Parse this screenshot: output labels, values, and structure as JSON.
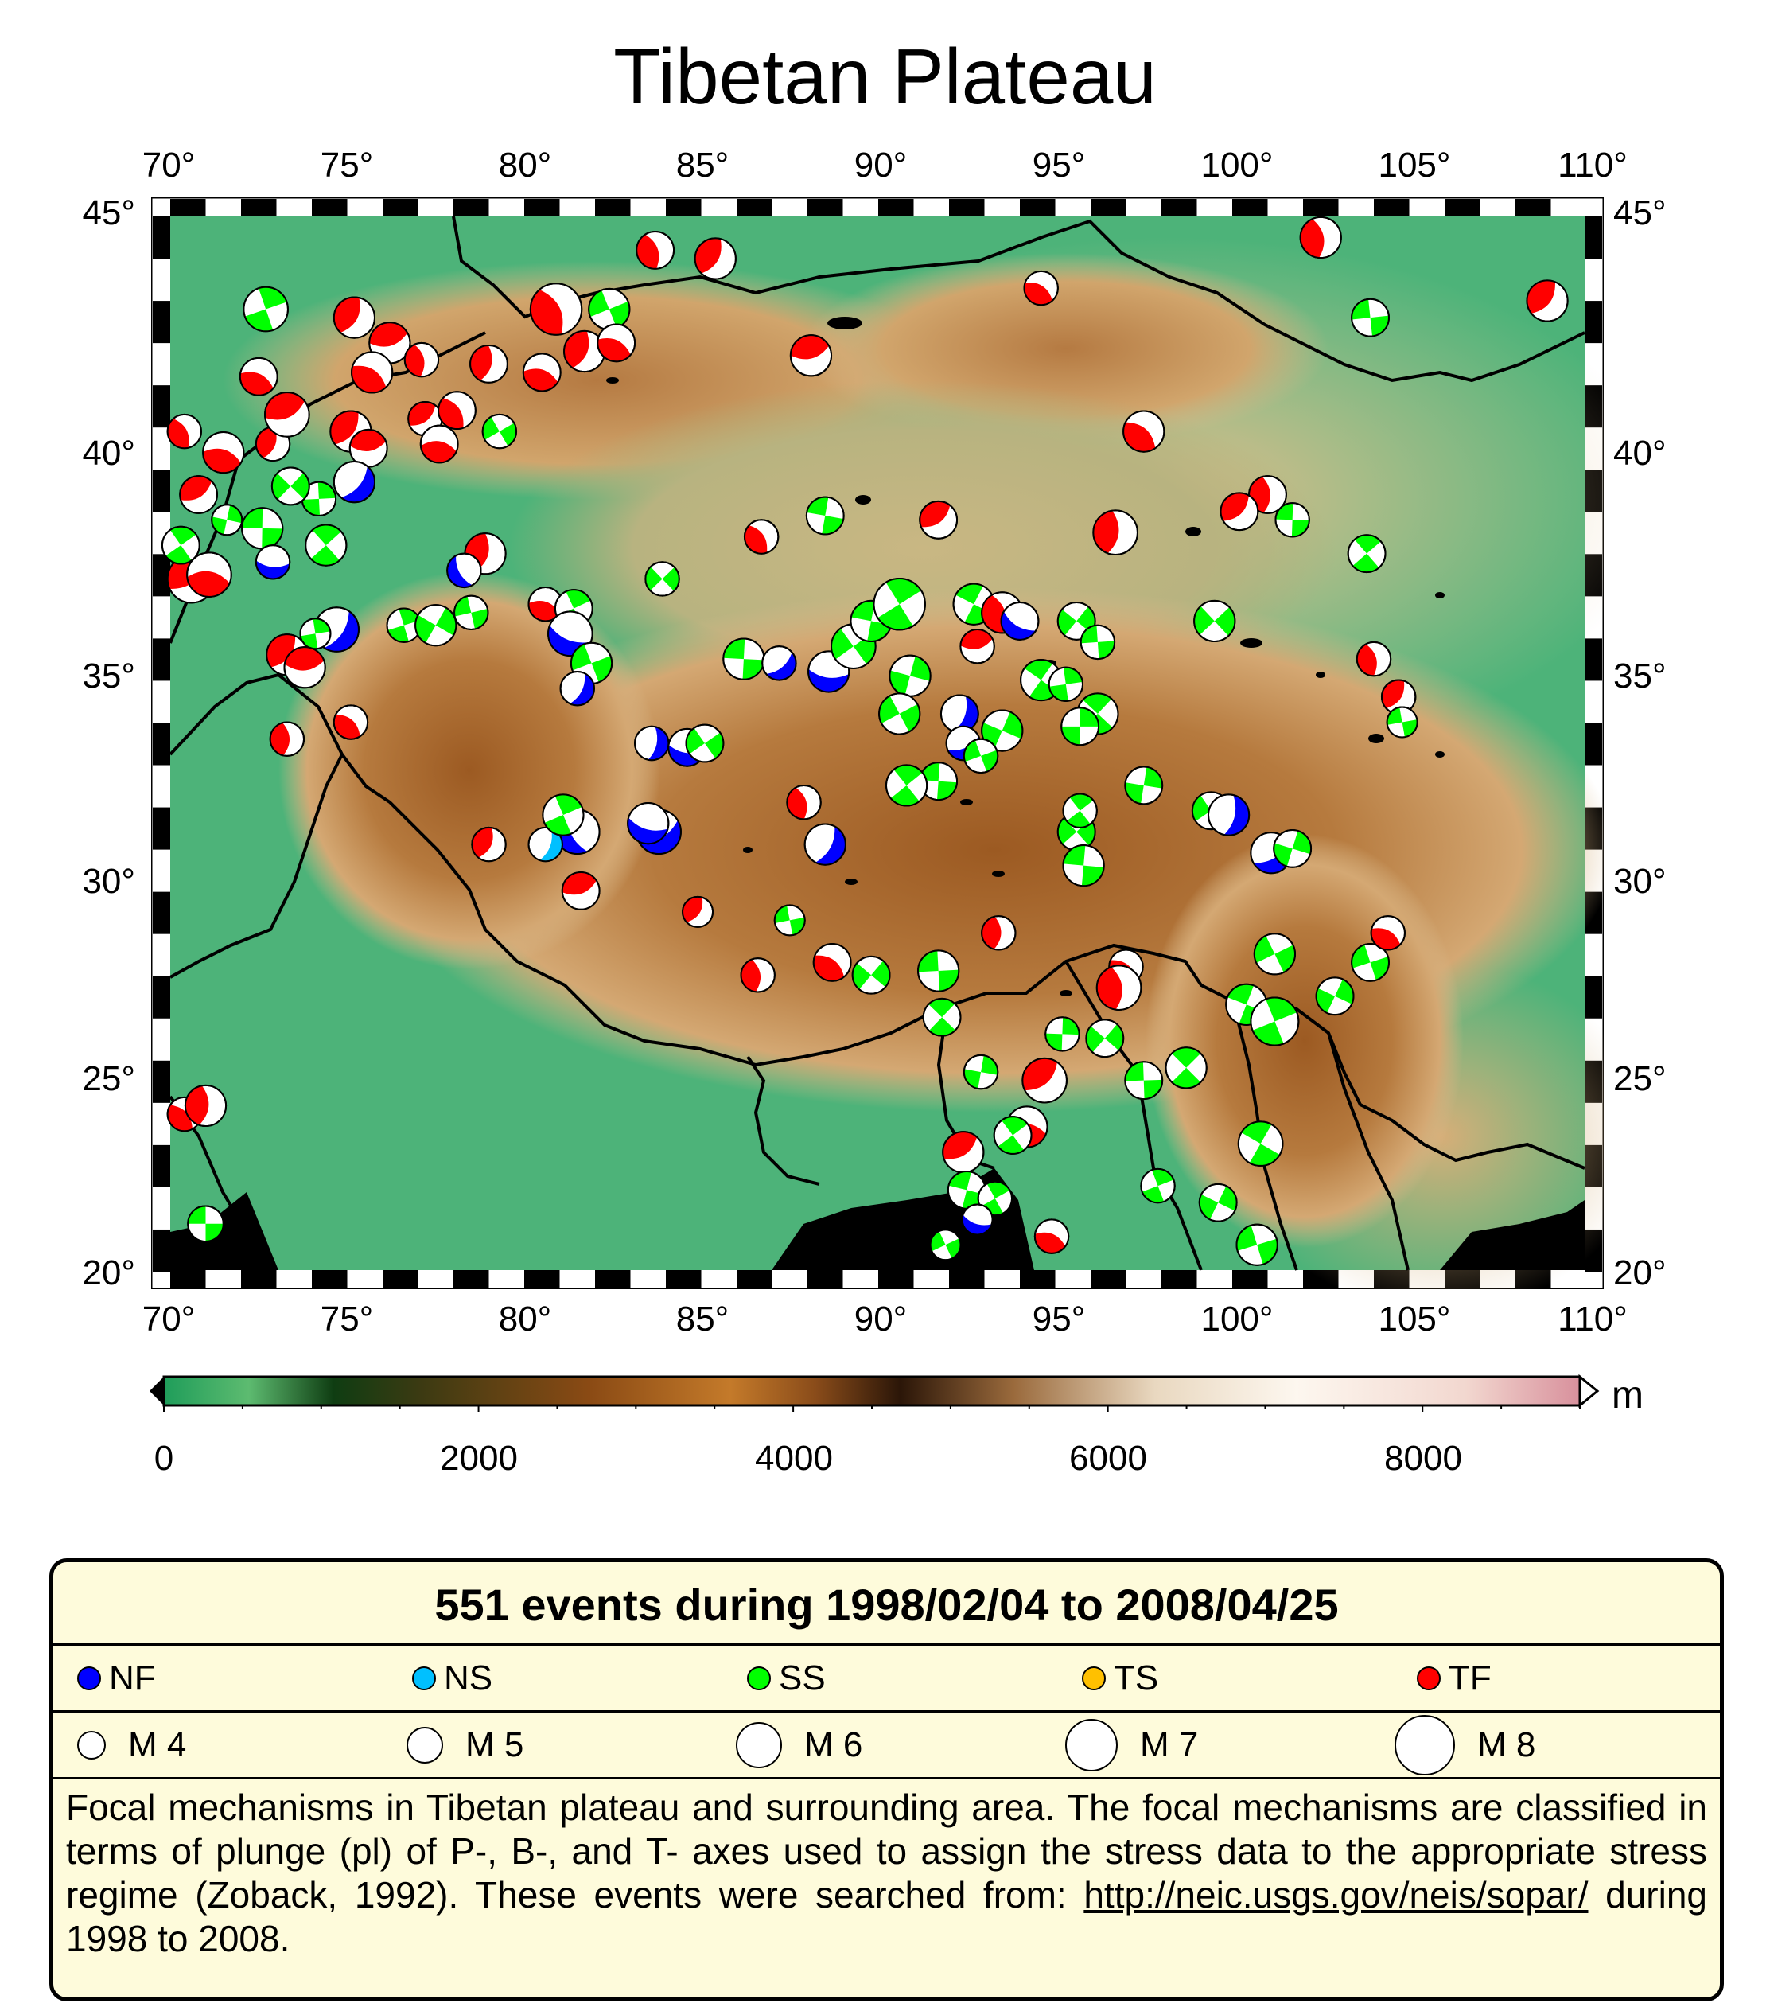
{
  "title": "Tibetan Plateau",
  "map": {
    "lon_range": [
      70,
      110
    ],
    "lat_range": [
      20,
      45
    ],
    "lon_ticks": [
      "70°",
      "75°",
      "80°",
      "85°",
      "90°",
      "95°",
      "100°",
      "105°",
      "110°"
    ],
    "lat_ticks": [
      "20°",
      "25°",
      "30°",
      "35°",
      "40°",
      "45°"
    ],
    "colors": {
      "NF": "#0000ff",
      "NS": "#00c0ff",
      "SS": "#00ff00",
      "TS": "#ffc000",
      "TF": "#ff0000"
    },
    "events": [
      {
        "lon": 71.0,
        "lat": 21.1,
        "t": "SS",
        "m": 5.3
      },
      {
        "lon": 70.4,
        "lat": 23.7,
        "t": "TF",
        "m": 5.2
      },
      {
        "lon": 71.0,
        "lat": 23.9,
        "t": "TF",
        "m": 5.6
      },
      {
        "lon": 70.6,
        "lat": 36.4,
        "t": "TF",
        "m": 6.0
      },
      {
        "lon": 71.1,
        "lat": 36.5,
        "t": "TF",
        "m": 5.8
      },
      {
        "lon": 70.3,
        "lat": 37.2,
        "t": "SS",
        "m": 5.4
      },
      {
        "lon": 71.6,
        "lat": 37.8,
        "t": "SS",
        "m": 5.0
      },
      {
        "lon": 70.8,
        "lat": 38.4,
        "t": "TF",
        "m": 5.4
      },
      {
        "lon": 71.5,
        "lat": 39.4,
        "t": "TF",
        "m": 5.6
      },
      {
        "lon": 70.4,
        "lat": 39.9,
        "t": "TF",
        "m": 5.2
      },
      {
        "lon": 72.9,
        "lat": 39.6,
        "t": "TF",
        "m": 5.2
      },
      {
        "lon": 73.3,
        "lat": 40.3,
        "t": "TF",
        "m": 5.8
      },
      {
        "lon": 72.5,
        "lat": 41.2,
        "t": "TF",
        "m": 5.4
      },
      {
        "lon": 72.7,
        "lat": 42.8,
        "t": "SS",
        "m": 5.8
      },
      {
        "lon": 75.2,
        "lat": 42.6,
        "t": "TF",
        "m": 5.6
      },
      {
        "lon": 76.2,
        "lat": 42.0,
        "t": "TF",
        "m": 5.6
      },
      {
        "lon": 75.7,
        "lat": 41.3,
        "t": "TF",
        "m": 5.6
      },
      {
        "lon": 77.1,
        "lat": 41.6,
        "t": "TF",
        "m": 5.2
      },
      {
        "lon": 75.1,
        "lat": 39.9,
        "t": "TF",
        "m": 5.6
      },
      {
        "lon": 75.6,
        "lat": 39.5,
        "t": "TF",
        "m": 5.4
      },
      {
        "lon": 75.2,
        "lat": 38.7,
        "t": "NF",
        "m": 5.6
      },
      {
        "lon": 74.2,
        "lat": 38.3,
        "t": "SS",
        "m": 5.2
      },
      {
        "lon": 73.4,
        "lat": 38.6,
        "t": "SS",
        "m": 5.4
      },
      {
        "lon": 72.6,
        "lat": 37.6,
        "t": "SS",
        "m": 5.6
      },
      {
        "lon": 74.4,
        "lat": 37.2,
        "t": "SS",
        "m": 5.6
      },
      {
        "lon": 72.9,
        "lat": 36.8,
        "t": "NF",
        "m": 5.2
      },
      {
        "lon": 77.2,
        "lat": 40.2,
        "t": "TF",
        "m": 5.2
      },
      {
        "lon": 77.6,
        "lat": 39.6,
        "t": "TF",
        "m": 5.4
      },
      {
        "lon": 78.1,
        "lat": 40.4,
        "t": "TF",
        "m": 5.4
      },
      {
        "lon": 79.0,
        "lat": 41.5,
        "t": "TF",
        "m": 5.4
      },
      {
        "lon": 79.3,
        "lat": 39.9,
        "t": "SS",
        "m": 5.2
      },
      {
        "lon": 80.5,
        "lat": 41.3,
        "t": "TF",
        "m": 5.4
      },
      {
        "lon": 80.9,
        "lat": 42.8,
        "t": "TF",
        "m": 6.2
      },
      {
        "lon": 81.7,
        "lat": 41.8,
        "t": "TF",
        "m": 5.6
      },
      {
        "lon": 82.4,
        "lat": 42.8,
        "t": "SS",
        "m": 5.6
      },
      {
        "lon": 82.6,
        "lat": 42.0,
        "t": "TF",
        "m": 5.4
      },
      {
        "lon": 83.7,
        "lat": 44.2,
        "t": "TF",
        "m": 5.4
      },
      {
        "lon": 85.4,
        "lat": 44.0,
        "t": "TF",
        "m": 5.6
      },
      {
        "lon": 88.1,
        "lat": 41.7,
        "t": "TF",
        "m": 5.6
      },
      {
        "lon": 94.6,
        "lat": 43.3,
        "t": "TF",
        "m": 5.2
      },
      {
        "lon": 102.5,
        "lat": 44.5,
        "t": "TF",
        "m": 5.6
      },
      {
        "lon": 108.9,
        "lat": 43.0,
        "t": "TF",
        "m": 5.6
      },
      {
        "lon": 103.9,
        "lat": 42.6,
        "t": "SS",
        "m": 5.4
      },
      {
        "lon": 97.5,
        "lat": 39.9,
        "t": "TF",
        "m": 5.6
      },
      {
        "lon": 101.0,
        "lat": 38.4,
        "t": "TF",
        "m": 5.4
      },
      {
        "lon": 100.2,
        "lat": 38.0,
        "t": "TF",
        "m": 5.4
      },
      {
        "lon": 101.7,
        "lat": 37.8,
        "t": "SS",
        "m": 5.2
      },
      {
        "lon": 103.8,
        "lat": 37.0,
        "t": "SS",
        "m": 5.4
      },
      {
        "lon": 96.7,
        "lat": 37.5,
        "t": "TF",
        "m": 5.8
      },
      {
        "lon": 91.7,
        "lat": 37.8,
        "t": "TF",
        "m": 5.4
      },
      {
        "lon": 88.5,
        "lat": 37.9,
        "t": "SS",
        "m": 5.4
      },
      {
        "lon": 86.7,
        "lat": 37.4,
        "t": "TF",
        "m": 5.2
      },
      {
        "lon": 78.9,
        "lat": 37.0,
        "t": "TF",
        "m": 5.6
      },
      {
        "lon": 78.3,
        "lat": 36.6,
        "t": "NF",
        "m": 5.2
      },
      {
        "lon": 80.6,
        "lat": 35.8,
        "t": "TF",
        "m": 5.2
      },
      {
        "lon": 81.4,
        "lat": 35.7,
        "t": "SS",
        "m": 5.4
      },
      {
        "lon": 81.3,
        "lat": 35.1,
        "t": "NF",
        "m": 5.8
      },
      {
        "lon": 81.9,
        "lat": 34.4,
        "t": "SS",
        "m": 5.6
      },
      {
        "lon": 81.5,
        "lat": 33.8,
        "t": "NF",
        "m": 5.2
      },
      {
        "lon": 76.6,
        "lat": 35.3,
        "t": "SS",
        "m": 5.2
      },
      {
        "lon": 77.5,
        "lat": 35.3,
        "t": "SS",
        "m": 5.6
      },
      {
        "lon": 78.5,
        "lat": 35.6,
        "t": "SS",
        "m": 5.2
      },
      {
        "lon": 74.7,
        "lat": 35.2,
        "t": "NF",
        "m": 5.8
      },
      {
        "lon": 74.1,
        "lat": 35.1,
        "t": "SS",
        "m": 5.0
      },
      {
        "lon": 73.3,
        "lat": 34.6,
        "t": "TF",
        "m": 5.6
      },
      {
        "lon": 73.8,
        "lat": 34.3,
        "t": "TF",
        "m": 5.6
      },
      {
        "lon": 75.1,
        "lat": 33.0,
        "t": "TF",
        "m": 5.2
      },
      {
        "lon": 73.3,
        "lat": 32.6,
        "t": "TF",
        "m": 5.2
      },
      {
        "lon": 83.9,
        "lat": 36.4,
        "t": "SS",
        "m": 5.2
      },
      {
        "lon": 86.2,
        "lat": 34.5,
        "t": "SS",
        "m": 5.6
      },
      {
        "lon": 87.2,
        "lat": 34.4,
        "t": "NF",
        "m": 5.2
      },
      {
        "lon": 88.6,
        "lat": 34.2,
        "t": "NF",
        "m": 5.6
      },
      {
        "lon": 89.3,
        "lat": 34.8,
        "t": "SS",
        "m": 5.8
      },
      {
        "lon": 89.8,
        "lat": 35.4,
        "t": "SS",
        "m": 5.6
      },
      {
        "lon": 90.6,
        "lat": 35.8,
        "t": "SS",
        "m": 6.2
      },
      {
        "lon": 90.9,
        "lat": 34.1,
        "t": "SS",
        "m": 5.6
      },
      {
        "lon": 90.6,
        "lat": 33.2,
        "t": "SS",
        "m": 5.6
      },
      {
        "lon": 92.3,
        "lat": 33.2,
        "t": "NF",
        "m": 5.4
      },
      {
        "lon": 92.4,
        "lat": 32.5,
        "t": "NF",
        "m": 5.2
      },
      {
        "lon": 93.5,
        "lat": 32.8,
        "t": "SS",
        "m": 5.6
      },
      {
        "lon": 92.9,
        "lat": 32.2,
        "t": "SS",
        "m": 5.2
      },
      {
        "lon": 92.7,
        "lat": 35.8,
        "t": "SS",
        "m": 5.6
      },
      {
        "lon": 93.5,
        "lat": 35.6,
        "t": "TF",
        "m": 5.6
      },
      {
        "lon": 94.0,
        "lat": 35.4,
        "t": "NF",
        "m": 5.4
      },
      {
        "lon": 92.8,
        "lat": 34.8,
        "t": "TF",
        "m": 5.2
      },
      {
        "lon": 94.6,
        "lat": 34.0,
        "t": "SS",
        "m": 5.6
      },
      {
        "lon": 95.3,
        "lat": 33.9,
        "t": "SS",
        "m": 5.2
      },
      {
        "lon": 95.6,
        "lat": 35.4,
        "t": "SS",
        "m": 5.4
      },
      {
        "lon": 96.2,
        "lat": 34.9,
        "t": "SS",
        "m": 5.2
      },
      {
        "lon": 96.2,
        "lat": 33.2,
        "t": "SS",
        "m": 5.6
      },
      {
        "lon": 95.7,
        "lat": 32.9,
        "t": "SS",
        "m": 5.4
      },
      {
        "lon": 99.5,
        "lat": 35.4,
        "t": "SS",
        "m": 5.6
      },
      {
        "lon": 91.7,
        "lat": 31.6,
        "t": "SS",
        "m": 5.4
      },
      {
        "lon": 90.8,
        "lat": 31.5,
        "t": "SS",
        "m": 5.6
      },
      {
        "lon": 84.6,
        "lat": 32.4,
        "t": "NF",
        "m": 5.4
      },
      {
        "lon": 85.1,
        "lat": 32.5,
        "t": "SS",
        "m": 5.4
      },
      {
        "lon": 83.6,
        "lat": 32.5,
        "t": "NF",
        "m": 5.2
      },
      {
        "lon": 83.8,
        "lat": 30.4,
        "t": "NF",
        "m": 5.8
      },
      {
        "lon": 83.5,
        "lat": 30.6,
        "t": "NF",
        "m": 5.6
      },
      {
        "lon": 81.5,
        "lat": 30.4,
        "t": "NF",
        "m": 5.8
      },
      {
        "lon": 80.6,
        "lat": 30.1,
        "t": "NS",
        "m": 5.2
      },
      {
        "lon": 81.1,
        "lat": 30.8,
        "t": "SS",
        "m": 5.6
      },
      {
        "lon": 79.0,
        "lat": 30.1,
        "t": "TF",
        "m": 5.2
      },
      {
        "lon": 81.6,
        "lat": 29.0,
        "t": "TF",
        "m": 5.4
      },
      {
        "lon": 88.5,
        "lat": 30.1,
        "t": "NF",
        "m": 5.6
      },
      {
        "lon": 87.9,
        "lat": 31.1,
        "t": "TF",
        "m": 5.2
      },
      {
        "lon": 84.9,
        "lat": 28.5,
        "t": "TF",
        "m": 5.0
      },
      {
        "lon": 87.5,
        "lat": 28.3,
        "t": "SS",
        "m": 5.0
      },
      {
        "lon": 88.7,
        "lat": 27.3,
        "t": "TF",
        "m": 5.4
      },
      {
        "lon": 86.6,
        "lat": 27.0,
        "t": "TF",
        "m": 5.2
      },
      {
        "lon": 89.8,
        "lat": 27.0,
        "t": "SS",
        "m": 5.4
      },
      {
        "lon": 91.7,
        "lat": 27.1,
        "t": "SS",
        "m": 5.6
      },
      {
        "lon": 91.8,
        "lat": 26.0,
        "t": "SS",
        "m": 5.4
      },
      {
        "lon": 93.4,
        "lat": 28.0,
        "t": "TF",
        "m": 5.2
      },
      {
        "lon": 95.6,
        "lat": 30.4,
        "t": "SS",
        "m": 5.4
      },
      {
        "lon": 95.8,
        "lat": 29.6,
        "t": "SS",
        "m": 5.6
      },
      {
        "lon": 95.7,
        "lat": 30.9,
        "t": "SS",
        "m": 5.2
      },
      {
        "lon": 97.5,
        "lat": 31.5,
        "t": "SS",
        "m": 5.4
      },
      {
        "lon": 99.4,
        "lat": 30.9,
        "t": "SS",
        "m": 5.4
      },
      {
        "lon": 99.9,
        "lat": 30.8,
        "t": "NF",
        "m": 5.6
      },
      {
        "lon": 101.1,
        "lat": 29.9,
        "t": "NF",
        "m": 5.6
      },
      {
        "lon": 101.7,
        "lat": 30.0,
        "t": "SS",
        "m": 5.4
      },
      {
        "lon": 101.2,
        "lat": 27.5,
        "t": "SS",
        "m": 5.6
      },
      {
        "lon": 100.4,
        "lat": 26.3,
        "t": "SS",
        "m": 5.6
      },
      {
        "lon": 101.2,
        "lat": 25.9,
        "t": "SS",
        "m": 6.0
      },
      {
        "lon": 102.9,
        "lat": 26.5,
        "t": "SS",
        "m": 5.4
      },
      {
        "lon": 103.9,
        "lat": 27.3,
        "t": "SS",
        "m": 5.4
      },
      {
        "lon": 104.4,
        "lat": 28.0,
        "t": "TF",
        "m": 5.2
      },
      {
        "lon": 104.0,
        "lat": 34.5,
        "t": "TF",
        "m": 5.2
      },
      {
        "lon": 104.7,
        "lat": 33.6,
        "t": "TF",
        "m": 5.2
      },
      {
        "lon": 104.8,
        "lat": 33.0,
        "t": "SS",
        "m": 5.0
      },
      {
        "lon": 97.0,
        "lat": 27.2,
        "t": "TF",
        "m": 5.2
      },
      {
        "lon": 96.8,
        "lat": 26.7,
        "t": "TF",
        "m": 5.8
      },
      {
        "lon": 96.4,
        "lat": 25.5,
        "t": "SS",
        "m": 5.4
      },
      {
        "lon": 97.5,
        "lat": 24.5,
        "t": "SS",
        "m": 5.4
      },
      {
        "lon": 98.7,
        "lat": 24.8,
        "t": "SS",
        "m": 5.6
      },
      {
        "lon": 95.2,
        "lat": 25.6,
        "t": "SS",
        "m": 5.2
      },
      {
        "lon": 94.7,
        "lat": 24.5,
        "t": "TF",
        "m": 5.8
      },
      {
        "lon": 94.2,
        "lat": 23.4,
        "t": "TF",
        "m": 5.6
      },
      {
        "lon": 93.8,
        "lat": 23.2,
        "t": "SS",
        "m": 5.4
      },
      {
        "lon": 92.9,
        "lat": 24.7,
        "t": "SS",
        "m": 5.2
      },
      {
        "lon": 92.4,
        "lat": 22.8,
        "t": "TF",
        "m": 5.6
      },
      {
        "lon": 92.5,
        "lat": 21.9,
        "t": "SS",
        "m": 5.4
      },
      {
        "lon": 93.3,
        "lat": 21.7,
        "t": "SS",
        "m": 5.2
      },
      {
        "lon": 92.8,
        "lat": 21.2,
        "t": "NF",
        "m": 5.0
      },
      {
        "lon": 91.9,
        "lat": 20.6,
        "t": "SS",
        "m": 5.0
      },
      {
        "lon": 94.9,
        "lat": 20.8,
        "t": "TF",
        "m": 5.2
      },
      {
        "lon": 97.9,
        "lat": 22.0,
        "t": "SS",
        "m": 5.2
      },
      {
        "lon": 99.6,
        "lat": 21.6,
        "t": "SS",
        "m": 5.4
      },
      {
        "lon": 100.7,
        "lat": 20.6,
        "t": "SS",
        "m": 5.6
      },
      {
        "lon": 100.8,
        "lat": 23.0,
        "t": "SS",
        "m": 5.8
      }
    ]
  },
  "colorbar": {
    "ticks": [
      "0",
      "2000",
      "4000",
      "6000",
      "8000"
    ],
    "range": [
      0,
      9000
    ],
    "unit": "m"
  },
  "legend": {
    "title": "551 events during 1998/02/04 to 2008/04/25",
    "types": [
      {
        "code": "NF",
        "color": "#0000ff"
      },
      {
        "code": "NS",
        "color": "#00c0ff"
      },
      {
        "code": "SS",
        "color": "#00ff00"
      },
      {
        "code": "TS",
        "color": "#ffc000"
      },
      {
        "code": "TF",
        "color": "#ff0000"
      }
    ],
    "magnitudes": [
      "M 4",
      "M 5",
      "M 6",
      "M 7",
      "M 8"
    ],
    "description": "Focal mechanisms in Tibetan plateau and surrounding area.  The focal mechanisms are classified in terms of plunge (pl) of P-, B-, and T- axes used to assign the stress data to the appropriate stress regime (Zoback, 1992).  These events were searched from: ",
    "url": "http://neic.usgs.gov/neis/sopar/",
    "description_end": " during 1998 to 2008."
  }
}
